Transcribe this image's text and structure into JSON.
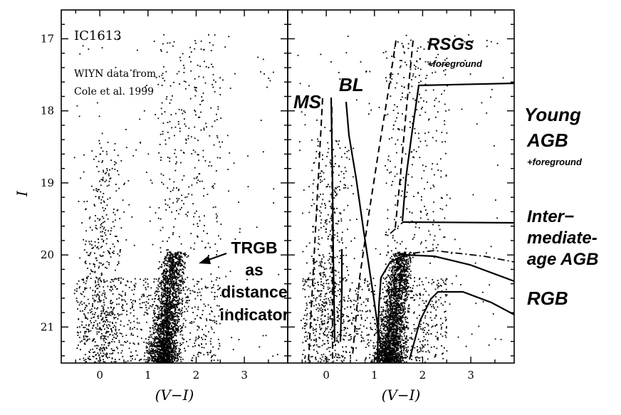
{
  "chart_data": [
    {
      "type": "scatter",
      "panel": "left",
      "xlabel": "(V−I)",
      "ylabel": "I",
      "xlim": [
        -0.8,
        3.9
      ],
      "ylim": [
        21.5,
        16.6
      ],
      "xticks": [
        0,
        1,
        2,
        3
      ],
      "yticks": [
        17,
        18,
        19,
        20,
        21
      ],
      "title": "IC1613",
      "note_line1": "WIYN data from",
      "note_line2": "Cole et al. 1999",
      "annotation": {
        "lines": [
          "TRGB",
          "as",
          "distance",
          "indicator"
        ],
        "arrow_tip": [
          1.75,
          20.0
        ]
      },
      "populations": {
        "rgb_plume": {
          "x_center": 1.35,
          "y_top": 20.0,
          "y_bottom": 21.5
        },
        "blue_plume": {
          "x_center": 0.15,
          "y_top": 18.3,
          "y_bottom": 21.5
        }
      }
    },
    {
      "type": "scatter",
      "panel": "right",
      "xlabel": "(V−I)",
      "xlim": [
        -0.8,
        3.9
      ],
      "ylim": [
        21.5,
        16.6
      ],
      "xticks": [
        0,
        1,
        2,
        3
      ],
      "regions": [
        {
          "name": "MS",
          "label": "MS",
          "boundary": "dashed",
          "x_range": [
            -0.3,
            0.1
          ],
          "y_top": 17.5
        },
        {
          "name": "BL",
          "label": "BL",
          "boundary": "solid",
          "x_range": [
            0.2,
            0.8
          ],
          "y_top": 17.6
        },
        {
          "name": "RSGs",
          "label": "RSGs",
          "sublabel": "+foreground",
          "boundary": "dashed",
          "x_range": [
            0.9,
            1.7
          ],
          "y_top": 16.7
        },
        {
          "name": "Young AGB",
          "label_lines": [
            "Young",
            "AGB"
          ],
          "sublabel": "+foreground",
          "boundary": "solid",
          "y_range": [
            17.4,
            19.4
          ]
        },
        {
          "name": "Intermediate-age AGB",
          "label_lines": [
            "Inter−",
            "mediate-",
            "age AGB"
          ],
          "boundary": "dash-dot",
          "y_range": [
            19.4,
            20.0
          ]
        },
        {
          "name": "RGB",
          "label": "RGB",
          "boundary": "solid",
          "y_range": [
            20.0,
            21.5
          ]
        }
      ]
    }
  ]
}
